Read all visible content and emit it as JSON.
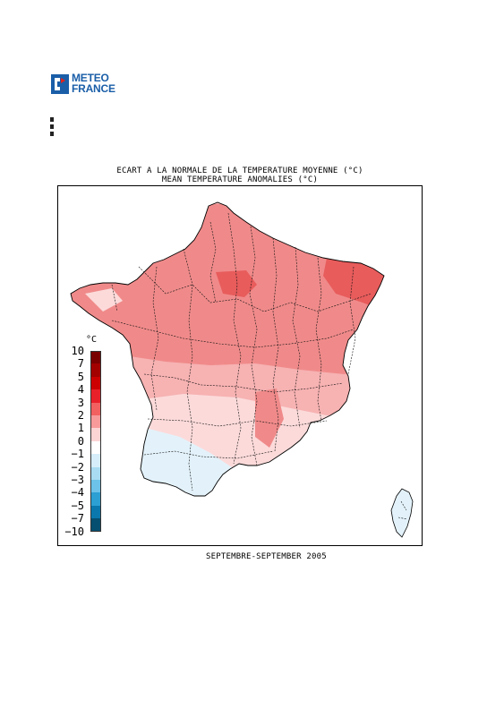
{
  "logo": {
    "line1": "METEO",
    "line2": "FRANCE",
    "brand_color": "#1a5ea8",
    "flag_red": "#e2231a"
  },
  "title": {
    "fr": "ECART A LA NORMALE DE LA TEMPERATURE MOYENNE (°C)",
    "en": "MEAN TEMPERATURE ANOMALIES (°C)"
  },
  "period": "SEPTEMBRE-SEPTEMBER 2005",
  "legend": {
    "unit": "°C",
    "ticks": [
      "10",
      "7",
      "5",
      "4",
      "3",
      "2",
      "1",
      "0",
      "-1",
      "-2",
      "-3",
      "-4",
      "-5",
      "-7",
      "-10"
    ],
    "colors": [
      "#7a0000",
      "#a30000",
      "#cc0000",
      "#e8202a",
      "#f26060",
      "#f89a9a",
      "#fcd4d4",
      "#ffffff",
      "#d6eef9",
      "#a9dcf2",
      "#6cc2e8",
      "#2c9fd3",
      "#0a78ad",
      "#064f70"
    ]
  },
  "map": {
    "region": "France",
    "background_color": "#f7b2b2",
    "warm_color": "#f08a8a",
    "hot_color": "#e85c5c",
    "mild_color": "#fcdada",
    "cool_color": "#e3f2fa"
  }
}
